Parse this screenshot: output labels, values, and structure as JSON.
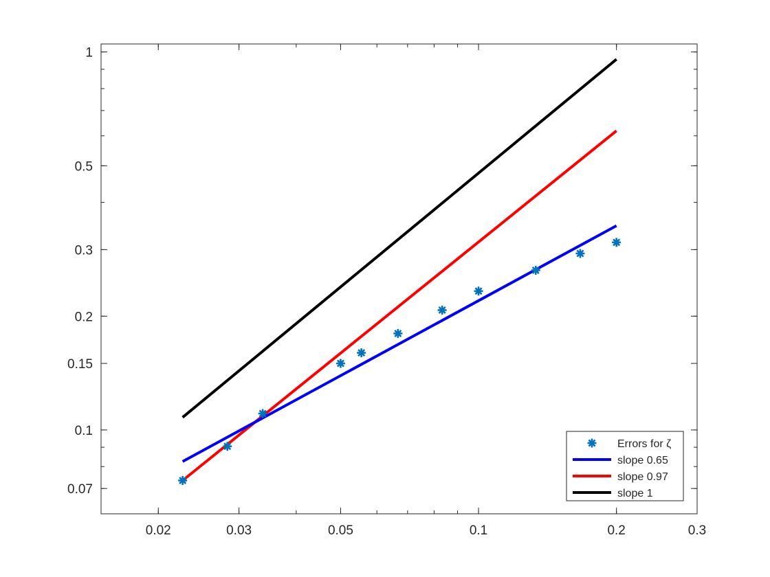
{
  "chart_data": {
    "type": "line",
    "xscale": "log",
    "yscale": "log",
    "xlim": [
      0.015,
      0.3
    ],
    "ylim": [
      0.06,
      1.05
    ],
    "xticks": [
      {
        "value": 0.02,
        "label": "0.02"
      },
      {
        "value": 0.03,
        "label": "0.03"
      },
      {
        "value": 0.05,
        "label": "0.05"
      },
      {
        "value": 0.1,
        "label": "0.1"
      },
      {
        "value": 0.2,
        "label": "0.2"
      },
      {
        "value": 0.3,
        "label": "0.3"
      }
    ],
    "yticks": [
      {
        "value": 0.07,
        "label": "0.07"
      },
      {
        "value": 0.1,
        "label": "0.1"
      },
      {
        "value": 0.15,
        "label": "0.15"
      },
      {
        "value": 0.2,
        "label": "0.2"
      },
      {
        "value": 0.3,
        "label": "0.3"
      },
      {
        "value": 0.5,
        "label": "0.5"
      },
      {
        "value": 1,
        "label": "1"
      }
    ],
    "grid": false,
    "legend_position": "bottom-right",
    "series": [
      {
        "name": "Errors for ζ",
        "kind": "markers",
        "marker": "asterisk",
        "color": "#0072BD",
        "x": [
          0.0226,
          0.0283,
          0.0338,
          0.05,
          0.0555,
          0.0667,
          0.0833,
          0.1,
          0.1333,
          0.1667,
          0.2
        ],
        "y": [
          0.0735,
          0.0905,
          0.1105,
          0.15,
          0.16,
          0.18,
          0.2075,
          0.233,
          0.2645,
          0.293,
          0.3135
        ]
      },
      {
        "name": "slope 0.65",
        "kind": "line",
        "color": "#0000FF",
        "x": [
          0.0226,
          0.2
        ],
        "y": [
          0.0825,
          0.347
        ]
      },
      {
        "name": "slope 0.97",
        "kind": "line",
        "color": "#FF0000",
        "x": [
          0.0226,
          0.2
        ],
        "y": [
          0.0735,
          0.6185
        ]
      },
      {
        "name": "slope 1",
        "kind": "line",
        "color": "#000000",
        "x": [
          0.0226,
          0.2
        ],
        "y": [
          0.108,
          0.9565
        ]
      }
    ]
  }
}
